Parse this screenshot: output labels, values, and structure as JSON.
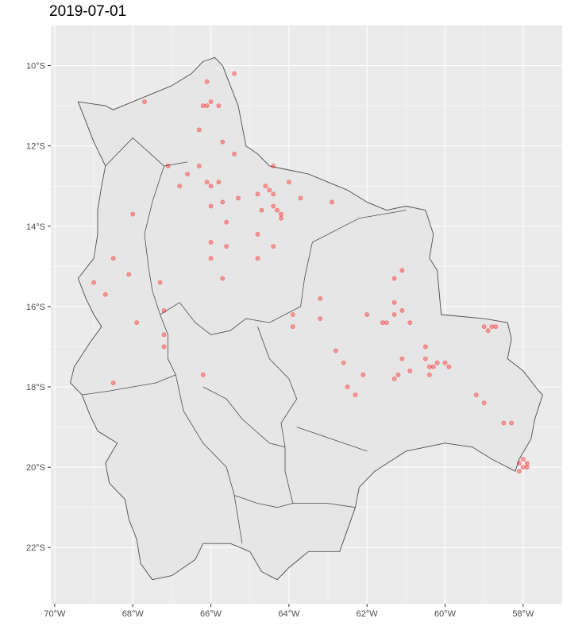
{
  "title": "2019-07-01",
  "colors": {
    "panel": "#ebebeb",
    "grid": "#ffffff",
    "land": "#e6e6e6",
    "border": "#4d4d4d",
    "point": "#ff0000"
  },
  "chart_data": {
    "type": "scatter",
    "title": "2019-07-01",
    "xlabel": "",
    "ylabel": "",
    "xlim": [
      -70.1,
      -57.0
    ],
    "ylim": [
      -23.4,
      -9.0
    ],
    "x_ticks": [
      -70,
      -68,
      -66,
      -64,
      -62,
      -60,
      -58
    ],
    "x_tick_labels": [
      "70°W",
      "68°W",
      "66°W",
      "64°W",
      "62°W",
      "60°W",
      "58°W"
    ],
    "y_ticks": [
      -10,
      -12,
      -14,
      -16,
      -18,
      -20,
      -22
    ],
    "y_tick_labels": [
      "10°S",
      "12°S",
      "14°S",
      "16°S",
      "18°S",
      "20°S",
      "22°S"
    ],
    "grid": true,
    "boundary": [
      [
        -69.4,
        -10.9
      ],
      [
        -68.7,
        -11.0
      ],
      [
        -68.5,
        -11.1
      ],
      [
        -68.0,
        -10.9
      ],
      [
        -67.5,
        -10.7
      ],
      [
        -67.0,
        -10.5
      ],
      [
        -66.5,
        -10.2
      ],
      [
        -66.2,
        -9.9
      ],
      [
        -65.9,
        -9.8
      ],
      [
        -65.7,
        -10.0
      ],
      [
        -65.5,
        -10.5
      ],
      [
        -65.3,
        -11.0
      ],
      [
        -65.2,
        -11.5
      ],
      [
        -65.1,
        -12.0
      ],
      [
        -64.8,
        -12.2
      ],
      [
        -64.5,
        -12.5
      ],
      [
        -64.0,
        -12.6
      ],
      [
        -63.5,
        -12.7
      ],
      [
        -63.0,
        -12.9
      ],
      [
        -62.5,
        -13.1
      ],
      [
        -62.0,
        -13.4
      ],
      [
        -61.5,
        -13.6
      ],
      [
        -61.0,
        -13.5
      ],
      [
        -60.5,
        -13.6
      ],
      [
        -60.3,
        -14.2
      ],
      [
        -60.4,
        -14.8
      ],
      [
        -60.2,
        -15.1
      ],
      [
        -60.1,
        -16.2
      ],
      [
        -59.0,
        -16.3
      ],
      [
        -58.4,
        -16.4
      ],
      [
        -58.3,
        -16.8
      ],
      [
        -58.4,
        -17.3
      ],
      [
        -58.0,
        -17.6
      ],
      [
        -57.6,
        -18.1
      ],
      [
        -57.5,
        -18.2
      ],
      [
        -57.7,
        -18.8
      ],
      [
        -57.8,
        -19.3
      ],
      [
        -58.1,
        -19.8
      ],
      [
        -58.2,
        -20.1
      ],
      [
        -58.8,
        -19.8
      ],
      [
        -59.3,
        -19.5
      ],
      [
        -60.0,
        -19.4
      ],
      [
        -61.0,
        -19.6
      ],
      [
        -61.8,
        -20.1
      ],
      [
        -62.2,
        -20.5
      ],
      [
        -62.3,
        -21.0
      ],
      [
        -62.7,
        -22.1
      ],
      [
        -63.0,
        -22.1
      ],
      [
        -63.5,
        -22.1
      ],
      [
        -64.0,
        -22.5
      ],
      [
        -64.3,
        -22.8
      ],
      [
        -64.7,
        -22.6
      ],
      [
        -65.0,
        -22.1
      ],
      [
        -65.5,
        -21.9
      ],
      [
        -66.2,
        -21.9
      ],
      [
        -66.4,
        -22.3
      ],
      [
        -67.0,
        -22.7
      ],
      [
        -67.5,
        -22.8
      ],
      [
        -67.8,
        -22.4
      ],
      [
        -67.9,
        -21.8
      ],
      [
        -68.1,
        -21.3
      ],
      [
        -68.2,
        -20.8
      ],
      [
        -68.6,
        -20.4
      ],
      [
        -68.7,
        -19.9
      ],
      [
        -68.4,
        -19.4
      ],
      [
        -68.9,
        -19.1
      ],
      [
        -69.1,
        -18.7
      ],
      [
        -69.3,
        -18.2
      ],
      [
        -69.6,
        -17.9
      ],
      [
        -69.5,
        -17.5
      ],
      [
        -69.1,
        -16.9
      ],
      [
        -68.8,
        -16.5
      ],
      [
        -69.0,
        -16.2
      ],
      [
        -69.2,
        -15.8
      ],
      [
        -69.4,
        -15.3
      ],
      [
        -69.0,
        -14.8
      ],
      [
        -68.9,
        -14.2
      ],
      [
        -68.9,
        -13.6
      ],
      [
        -68.8,
        -13.0
      ],
      [
        -68.7,
        -12.5
      ],
      [
        -69.0,
        -11.9
      ],
      [
        -69.4,
        -10.9
      ]
    ],
    "internal_borders": [
      [
        [
          -68.7,
          -12.5
        ],
        [
          -68.0,
          -11.8
        ],
        [
          -67.2,
          -12.5
        ],
        [
          -66.6,
          -12.4
        ]
      ],
      [
        [
          -67.2,
          -12.5
        ],
        [
          -67.5,
          -13.4
        ],
        [
          -67.7,
          -14.2
        ],
        [
          -67.6,
          -15.0
        ],
        [
          -67.5,
          -15.6
        ],
        [
          -67.3,
          -16.2
        ],
        [
          -67.1,
          -16.7
        ],
        [
          -67.1,
          -17.3
        ],
        [
          -66.9,
          -17.7
        ],
        [
          -67.4,
          -17.9
        ],
        [
          -68.0,
          -18.0
        ],
        [
          -68.6,
          -18.1
        ],
        [
          -69.3,
          -18.2
        ]
      ],
      [
        [
          -67.3,
          -16.2
        ],
        [
          -66.8,
          -15.9
        ],
        [
          -66.4,
          -16.4
        ],
        [
          -66.0,
          -16.7
        ],
        [
          -65.5,
          -16.6
        ],
        [
          -65.1,
          -16.3
        ],
        [
          -64.5,
          -16.4
        ],
        [
          -63.7,
          -16.0
        ],
        [
          -63.6,
          -15.3
        ],
        [
          -63.4,
          -14.4
        ],
        [
          -62.2,
          -13.8
        ],
        [
          -61.0,
          -13.6
        ]
      ],
      [
        [
          -64.8,
          -16.5
        ],
        [
          -64.5,
          -17.3
        ],
        [
          -64.0,
          -17.8
        ],
        [
          -63.8,
          -18.3
        ],
        [
          -64.2,
          -18.9
        ],
        [
          -64.1,
          -19.5
        ],
        [
          -64.1,
          -20.1
        ],
        [
          -63.9,
          -20.9
        ],
        [
          -63.0,
          -20.9
        ],
        [
          -62.3,
          -21.0
        ]
      ],
      [
        [
          -66.9,
          -17.7
        ],
        [
          -66.7,
          -18.6
        ],
        [
          -66.2,
          -19.4
        ],
        [
          -65.6,
          -20.0
        ],
        [
          -65.4,
          -20.7
        ],
        [
          -65.3,
          -21.3
        ],
        [
          -65.2,
          -21.9
        ]
      ],
      [
        [
          -66.2,
          -18.0
        ],
        [
          -65.6,
          -18.3
        ],
        [
          -65.2,
          -18.8
        ],
        [
          -64.5,
          -19.4
        ],
        [
          -64.1,
          -19.5
        ]
      ],
      [
        [
          -65.4,
          -20.7
        ],
        [
          -64.8,
          -20.9
        ],
        [
          -64.3,
          -21.0
        ],
        [
          -63.9,
          -20.9
        ]
      ],
      [
        [
          -63.8,
          -19.0
        ],
        [
          -62.0,
          -19.6
        ]
      ]
    ],
    "points": [
      [
        -66.1,
        -10.4
      ],
      [
        -65.4,
        -10.2
      ],
      [
        -67.7,
        -10.9
      ],
      [
        -66.1,
        -11.0
      ],
      [
        -66.0,
        -10.9
      ],
      [
        -65.8,
        -11.0
      ],
      [
        -66.2,
        -11.0
      ],
      [
        -67.1,
        -12.5
      ],
      [
        -66.3,
        -11.6
      ],
      [
        -65.7,
        -11.9
      ],
      [
        -65.4,
        -12.2
      ],
      [
        -66.3,
        -12.5
      ],
      [
        -64.4,
        -12.5
      ],
      [
        -66.8,
        -13.0
      ],
      [
        -66.6,
        -12.7
      ],
      [
        -66.1,
        -12.9
      ],
      [
        -66.0,
        -13.0
      ],
      [
        -65.8,
        -12.9
      ],
      [
        -64.8,
        -13.2
      ],
      [
        -64.6,
        -13.0
      ],
      [
        -64.0,
        -12.9
      ],
      [
        -64.5,
        -13.1
      ],
      [
        -64.4,
        -13.2
      ],
      [
        -63.7,
        -13.3
      ],
      [
        -62.9,
        -13.4
      ],
      [
        -66.0,
        -13.5
      ],
      [
        -65.7,
        -13.4
      ],
      [
        -65.3,
        -13.3
      ],
      [
        -64.7,
        -13.6
      ],
      [
        -64.3,
        -13.6
      ],
      [
        -64.2,
        -13.7
      ],
      [
        -64.4,
        -13.5
      ],
      [
        -65.6,
        -13.9
      ],
      [
        -64.2,
        -13.8
      ],
      [
        -68.0,
        -13.7
      ],
      [
        -64.8,
        -14.2
      ],
      [
        -64.4,
        -14.5
      ],
      [
        -66.0,
        -14.4
      ],
      [
        -66.0,
        -14.8
      ],
      [
        -65.6,
        -14.5
      ],
      [
        -65.7,
        -15.3
      ],
      [
        -64.8,
        -14.8
      ],
      [
        -68.5,
        -14.8
      ],
      [
        -68.1,
        -15.2
      ],
      [
        -67.3,
        -15.4
      ],
      [
        -69.0,
        -15.4
      ],
      [
        -68.7,
        -15.7
      ],
      [
        -67.2,
        -16.1
      ],
      [
        -67.9,
        -16.4
      ],
      [
        -67.2,
        -16.7
      ],
      [
        -67.2,
        -17.0
      ],
      [
        -66.2,
        -17.7
      ],
      [
        -68.5,
        -17.9
      ],
      [
        -63.9,
        -16.2
      ],
      [
        -63.9,
        -16.5
      ],
      [
        -63.2,
        -15.8
      ],
      [
        -63.2,
        -16.3
      ],
      [
        -62.0,
        -16.2
      ],
      [
        -61.1,
        -15.1
      ],
      [
        -61.3,
        -15.3
      ],
      [
        -61.3,
        -15.9
      ],
      [
        -61.3,
        -16.2
      ],
      [
        -61.1,
        -16.1
      ],
      [
        -61.6,
        -16.4
      ],
      [
        -61.5,
        -16.4
      ],
      [
        -60.9,
        -16.4
      ],
      [
        -62.8,
        -17.1
      ],
      [
        -62.6,
        -17.4
      ],
      [
        -62.1,
        -17.7
      ],
      [
        -61.1,
        -17.3
      ],
      [
        -60.5,
        -17.0
      ],
      [
        -60.5,
        -17.3
      ],
      [
        -60.4,
        -17.5
      ],
      [
        -60.3,
        -17.5
      ],
      [
        -60.2,
        -17.4
      ],
      [
        -60.0,
        -17.4
      ],
      [
        -59.9,
        -17.5
      ],
      [
        -60.9,
        -17.6
      ],
      [
        -61.2,
        -17.7
      ],
      [
        -61.3,
        -17.8
      ],
      [
        -60.4,
        -17.7
      ],
      [
        -62.5,
        -18.0
      ],
      [
        -62.3,
        -18.2
      ],
      [
        -59.0,
        -16.5
      ],
      [
        -58.9,
        -16.6
      ],
      [
        -58.7,
        -16.5
      ],
      [
        -58.8,
        -16.5
      ],
      [
        -59.2,
        -18.2
      ],
      [
        -59.0,
        -18.4
      ],
      [
        -58.5,
        -18.9
      ],
      [
        -58.3,
        -18.9
      ],
      [
        -58.1,
        -19.9
      ],
      [
        -58.0,
        -20.0
      ],
      [
        -57.9,
        -19.9
      ],
      [
        -58.0,
        -19.8
      ],
      [
        -58.1,
        -20.1
      ],
      [
        -57.9,
        -20.0
      ]
    ]
  }
}
